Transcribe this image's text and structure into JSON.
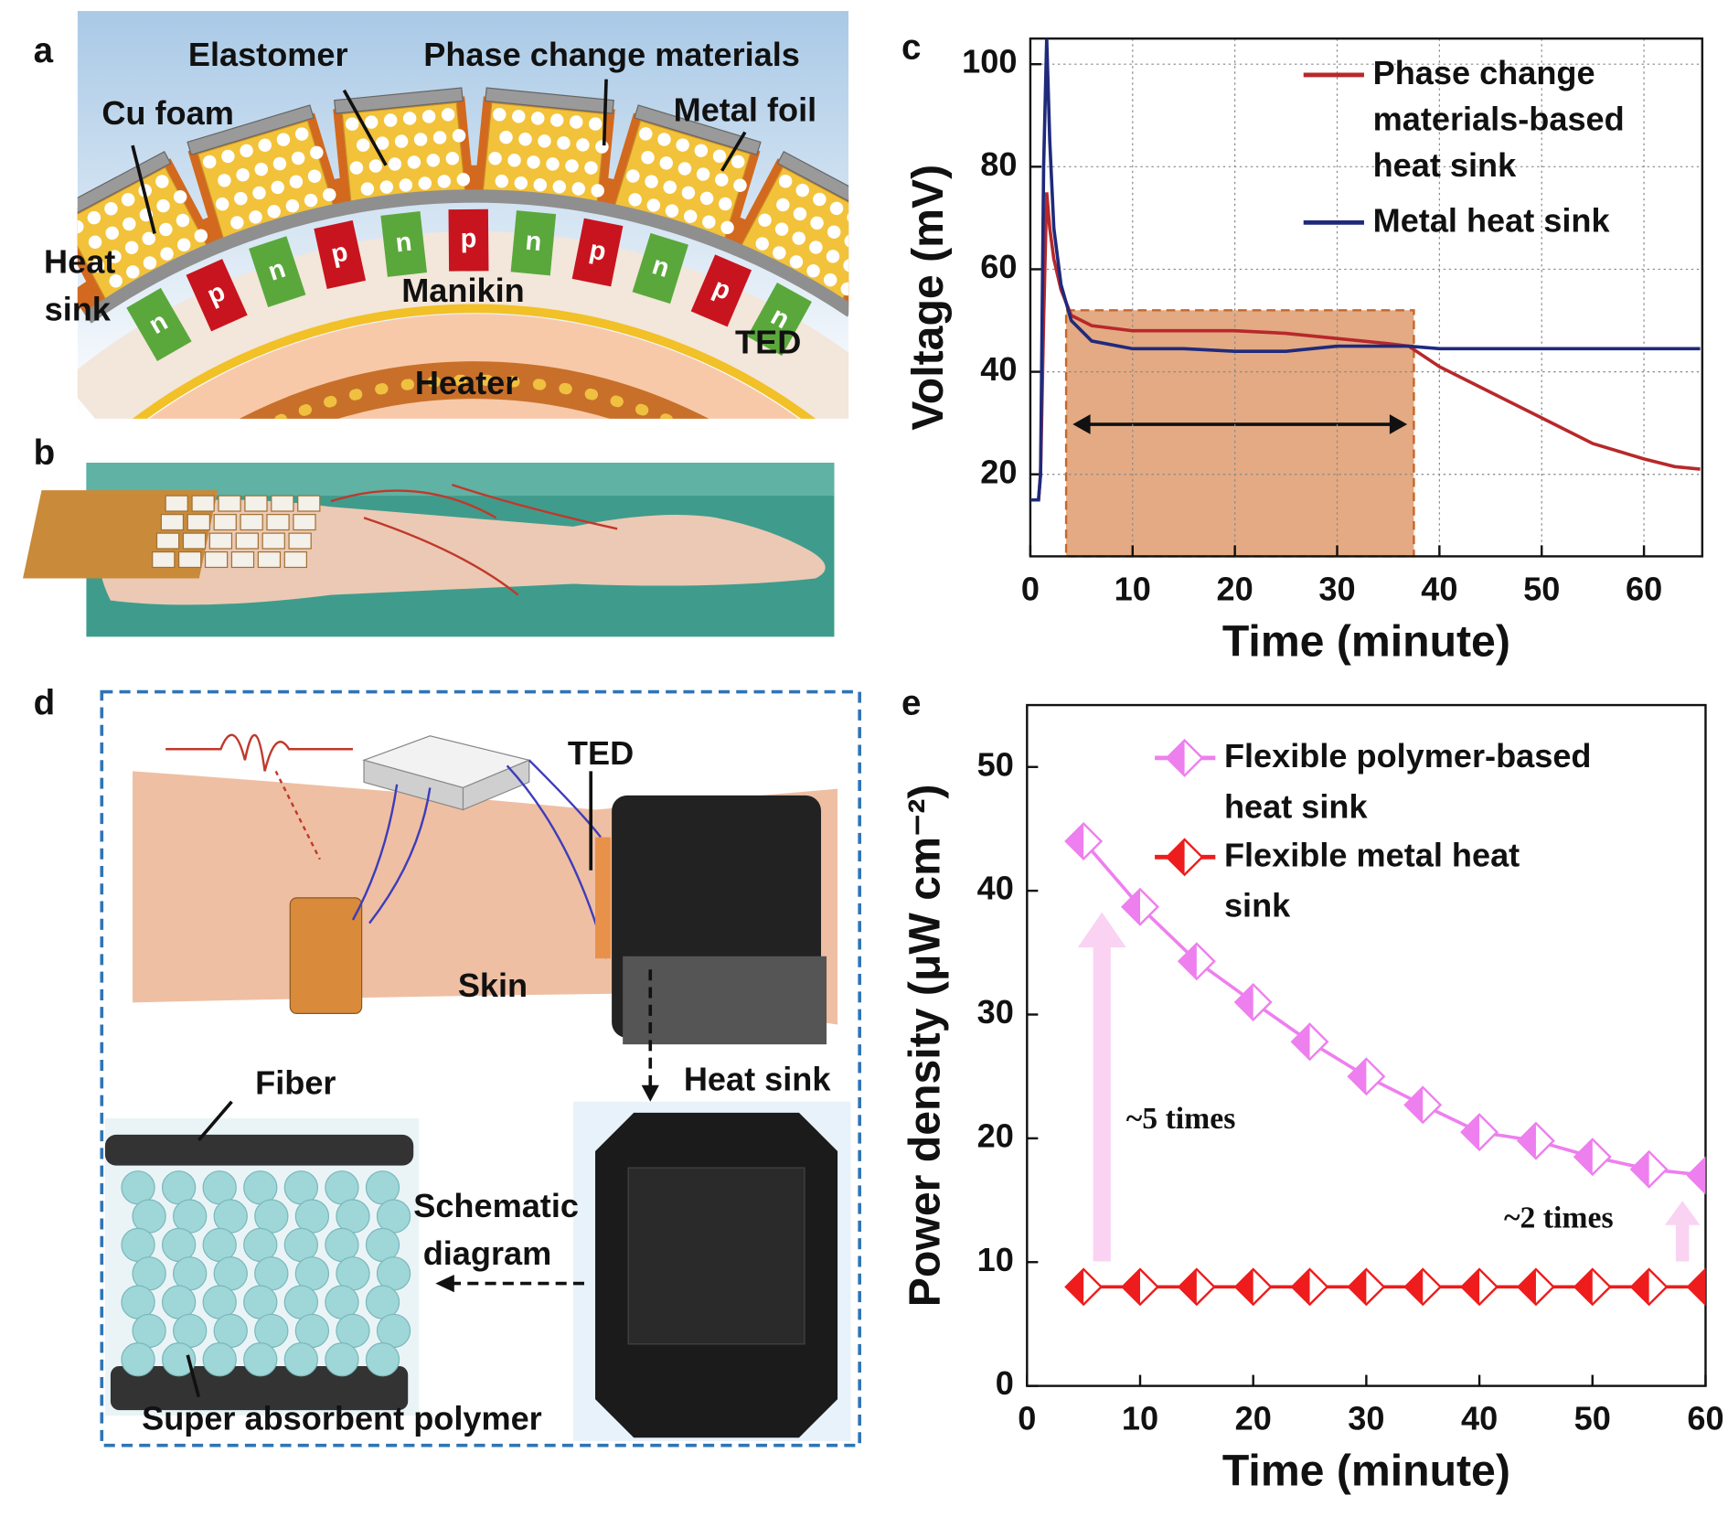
{
  "panel_labels": {
    "a": "a",
    "b": "b",
    "c": "c",
    "d": "d",
    "e": "e"
  },
  "diagram_a": {
    "elastomer": "Elastomer",
    "phase_change_materials": "Phase change materials",
    "cu_foam": "Cu foam",
    "metal_foil": "Metal foil",
    "heat_sink": [
      "Heat",
      "sink"
    ],
    "manikin": "Manikin",
    "ted": "TED",
    "heater": "Heater",
    "n": "n",
    "p": "p"
  },
  "diagram_d": {
    "ted": "TED",
    "skin": "Skin",
    "heat_sink": "Heat sink",
    "fiber": "Fiber",
    "schematic_diagram": [
      "Schematic",
      "diagram"
    ],
    "super_absorbent_polymer": "Super absorbent polymer"
  },
  "chart_data": [
    {
      "type": "line",
      "xlabel": "Time (minute)",
      "ylabel": "Voltage (mV)",
      "x": [
        0,
        0.8,
        1.0,
        1.3,
        1.6,
        1.9,
        2.3,
        3,
        4,
        6,
        10,
        15,
        20,
        25,
        30,
        35,
        37,
        40,
        45,
        50,
        55,
        60,
        63,
        65.5
      ],
      "xlim": [
        0,
        65.7
      ],
      "ylim": [
        4,
        105
      ],
      "xticks": [
        0,
        10,
        20,
        30,
        40,
        50,
        60
      ],
      "yticks": [
        20,
        40,
        60,
        80,
        100
      ],
      "grid": true,
      "legend": "upper right",
      "span": [
        3.5,
        37.5
      ],
      "span_top": 52,
      "span_color": "#d98e5a",
      "series": [
        {
          "name": "Phase change materials-based heat sink",
          "color": "#b8282a",
          "values": [
            15,
            15,
            20,
            50,
            75,
            68,
            62,
            56,
            51,
            49,
            48,
            48,
            48,
            47.5,
            46.5,
            45.5,
            45,
            41,
            36,
            31,
            26,
            23,
            21.5,
            21
          ]
        },
        {
          "name": "Metal heat sink",
          "color": "#1f2a7c",
          "values": [
            15,
            15,
            20,
            80,
            105,
            85,
            68,
            57,
            50,
            46,
            44.5,
            44.5,
            44,
            44,
            45,
            45,
            45,
            44.5,
            44.5,
            44.5,
            44.5,
            44.5,
            44.5,
            44.5
          ]
        }
      ]
    },
    {
      "type": "line",
      "xlabel": "Time (minute)",
      "ylabel": "Power density (μW cm⁻²)",
      "x": [
        5,
        10,
        15,
        20,
        25,
        30,
        35,
        40,
        45,
        50,
        55,
        60
      ],
      "xlim": [
        0,
        60
      ],
      "ylim": [
        0,
        55
      ],
      "xticks": [
        0,
        10,
        20,
        30,
        40,
        50,
        60
      ],
      "yticks": [
        0,
        10,
        20,
        30,
        40,
        50
      ],
      "grid": false,
      "legend": "upper right",
      "marker": "half-diamond",
      "annotations": [
        "~5 times",
        "~2 times"
      ],
      "series": [
        {
          "name": "Flexible polymer-based heat sink",
          "color": "#ee7fee",
          "values": [
            44,
            38.7,
            34.3,
            31,
            27.8,
            25,
            22.7,
            20.5,
            19.8,
            18.5,
            17.5,
            17
          ]
        },
        {
          "name": "Flexible metal heat sink",
          "color": "#ee1c1c",
          "values": [
            8,
            8,
            8,
            8,
            8,
            8,
            8,
            8,
            8,
            8,
            8,
            8
          ]
        }
      ]
    }
  ]
}
